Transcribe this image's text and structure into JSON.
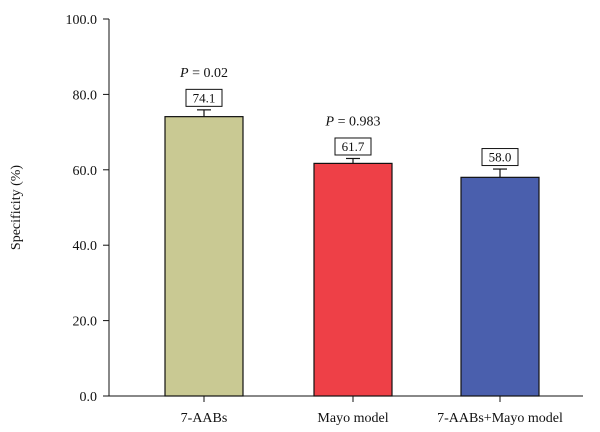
{
  "chart_data": {
    "type": "bar",
    "categories": [
      "7-AABs",
      "Mayo model",
      "7-AABs+Mayo model"
    ],
    "values": [
      74.1,
      61.7,
      58.0
    ],
    "value_labels": [
      "74.1",
      "61.7",
      "58.0"
    ],
    "error_upper": [
      75.9,
      63.0,
      60.2
    ],
    "bar_colors": [
      "#c9c993",
      "#ee4047",
      "#4a5fad"
    ],
    "annotations": [
      {
        "category": "7-AABs",
        "italic": "P",
        "text": " = 0.02"
      },
      {
        "category": "Mayo model",
        "italic": "P",
        "text": " = 0.983"
      }
    ],
    "title": "",
    "xlabel": "",
    "ylabel": "Specificity (%)",
    "ylim": [
      0,
      100
    ],
    "yticks": [
      "0.0",
      "20.0",
      "40.0",
      "60.0",
      "80.0",
      "100.0"
    ],
    "grid": false,
    "legend": "none"
  }
}
